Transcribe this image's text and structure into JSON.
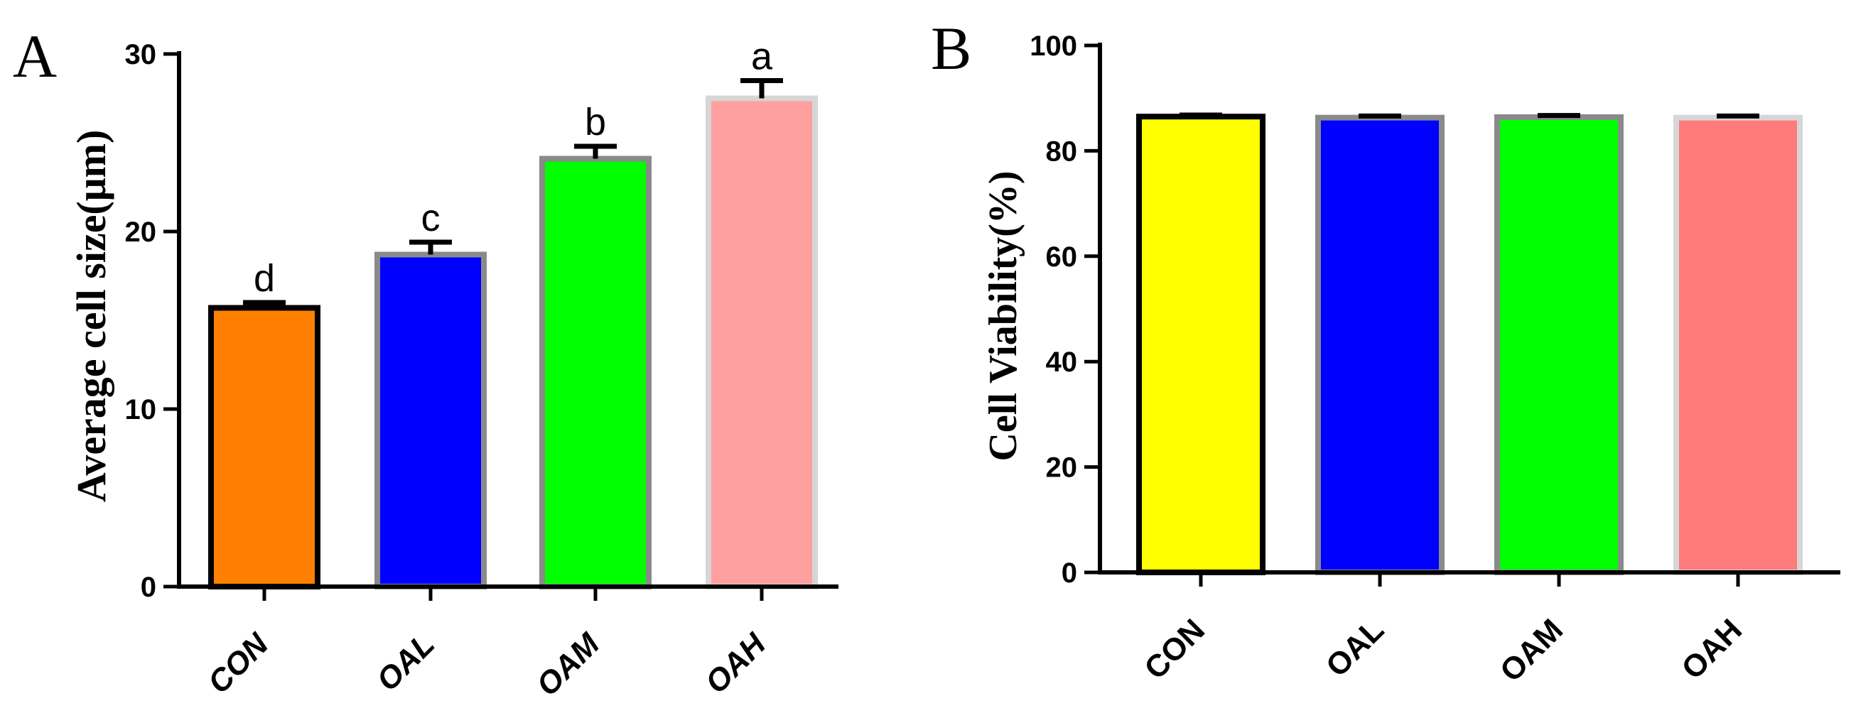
{
  "chart_data": [
    {
      "panel": "A",
      "type": "bar",
      "categories": [
        "CON",
        "OAL",
        "OAM",
        "OAH"
      ],
      "values": [
        15.7,
        18.7,
        24.1,
        27.5
      ],
      "errors": [
        0.3,
        0.7,
        0.7,
        1.0
      ],
      "significance_labels": [
        "d",
        "c",
        "b",
        "a"
      ],
      "colors": [
        "#ff8000",
        "#0000ff",
        "#00ff00",
        "#ffa0a0"
      ],
      "border_colors": [
        "#000000",
        "#8a8a8a",
        "#8a8a8a",
        "#d6d6d6"
      ],
      "title": "",
      "xlabel": "",
      "ylabel": "Average cell size(μm)",
      "ylim": [
        0,
        30
      ],
      "yticks": [
        "0",
        "10",
        "20",
        "30"
      ],
      "grid": false,
      "legend": "none"
    },
    {
      "panel": "B",
      "type": "bar",
      "categories": [
        "CON",
        "OAL",
        "OAM",
        "OAH"
      ],
      "values": [
        86.5,
        86.3,
        86.4,
        86.3
      ],
      "errors": [
        0.3,
        0.3,
        0.3,
        0.3
      ],
      "colors": [
        "#ffff00",
        "#0000ff",
        "#00ff00",
        "#ff7a7a"
      ],
      "border_colors": [
        "#000000",
        "#8a8a8a",
        "#8a8a8a",
        "#d6d6d6"
      ],
      "title": "",
      "xlabel": "",
      "ylabel": "Cell Viability(%)",
      "ylim": [
        0,
        100
      ],
      "yticks": [
        "0",
        "20",
        "40",
        "60",
        "80",
        "100"
      ],
      "grid": false,
      "legend": "none"
    }
  ]
}
